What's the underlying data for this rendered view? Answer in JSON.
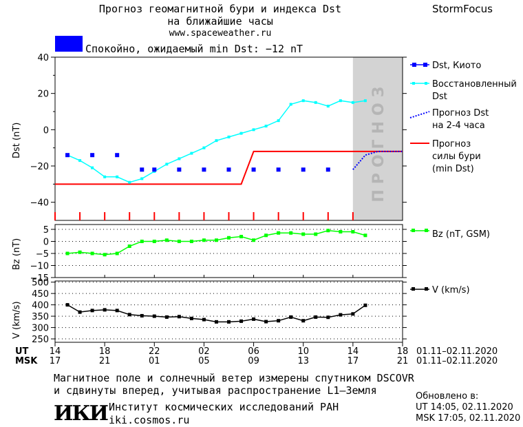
{
  "header": {
    "title_line1": "Прогноз геомагнитной бури и индекса Dst",
    "title_line2": "на ближайшие часы",
    "site": "www.spaceweather.ru",
    "brand": "StormFocus"
  },
  "status": {
    "color": "#0000ff",
    "text": "Спокойно, ожидаемый min Dst: −12 nT"
  },
  "legend": {
    "dst_kyoto": "Dst, Киото",
    "restored_1": "Восстановленный",
    "restored_2": "Dst",
    "forecast_dst_1": "Прогноз Dst",
    "forecast_dst_2": "на 2-4 часа",
    "storm_1": "Прогноз",
    "storm_2": "силы бури",
    "storm_3": "(min Dst)",
    "bz": "Bz (nT, GSM)",
    "v": "V (km/s)"
  },
  "forecast_label": "ПРОГНОЗ",
  "axes": {
    "dst_ylabel": "Dst (nT)",
    "bz_ylabel": "Bz (nT)",
    "v_ylabel": "V (km/s)",
    "dst_ticks": [
      "40",
      "20",
      "0",
      "−20",
      "−40"
    ],
    "bz_ticks": [
      "5",
      "0",
      "−5",
      "−10",
      "−15"
    ],
    "v_ticks": [
      "500",
      "450",
      "400",
      "350",
      "300",
      "250"
    ],
    "ut_label": "UT",
    "msk_label": "MSK",
    "ut_ticks": [
      "14",
      "18",
      "22",
      "02",
      "06",
      "10",
      "14",
      "18"
    ],
    "msk_ticks": [
      "17",
      "21",
      "01",
      "05",
      "09",
      "13",
      "17",
      "21"
    ],
    "date_range_ut": "01.11–02.11.2020",
    "date_range_msk": "01.11–02.11.2020"
  },
  "footer": {
    "note_line1": "Магнитное поле и солнечный ветер измерены спутником DSCOVR",
    "note_line2": "и сдвинуты вперед, учитывая распространение L1–Земля",
    "updated_label": "Обновлено в:",
    "updated_ut": "UT  14:05, 02.11.2020",
    "updated_msk": "MSK 17:05, 02.11.2020",
    "logo_text": "ИКИ",
    "institute": "Институт космических исследований РАН",
    "institute_site": "iki.cosmos.ru"
  },
  "chart_data": [
    {
      "type": "line",
      "panel": "dst",
      "x_unit": "hours since 14 UT 01.11",
      "xlim": [
        0,
        28
      ],
      "ylim": [
        -50,
        40
      ],
      "forecast_shade_x": [
        24,
        28
      ],
      "colors": {
        "kyoto": "#0000ff",
        "restored": "#00ffff",
        "forecast": "#0000ff",
        "storm": "#ff0000",
        "shade": "#d3d3d3"
      },
      "series": [
        {
          "name": "Dst, Киото",
          "x": [
            1,
            3,
            5,
            7,
            8,
            10,
            12,
            14,
            16,
            18,
            20,
            22
          ],
          "values": [
            -14,
            -14,
            -14,
            -22,
            -22,
            -22,
            -22,
            -22,
            -22,
            -22,
            -22,
            -22
          ]
        },
        {
          "name": "Восстановленный Dst",
          "x": [
            1,
            2,
            3,
            4,
            5,
            6,
            7,
            8,
            9,
            10,
            11,
            12,
            13,
            14,
            15,
            16,
            17,
            18,
            19,
            20,
            21,
            22,
            23,
            24,
            25
          ],
          "values": [
            -14,
            -17,
            -21,
            -26,
            -26,
            -29,
            -27,
            -23,
            -19,
            -16,
            -13,
            -10,
            -6,
            -4,
            -2,
            0,
            2,
            5,
            14,
            16,
            15,
            13,
            16,
            15,
            16
          ]
        },
        {
          "name": "Прогноз Dst на 2-4 часа",
          "x": [
            24,
            25,
            26,
            27,
            28
          ],
          "values": [
            -22,
            -14,
            -12,
            -12,
            -12
          ]
        },
        {
          "name": "Прогноз силы бури (min Dst)",
          "x": [
            0,
            15,
            16,
            28
          ],
          "values": [
            -30,
            -30,
            -12,
            -12
          ]
        }
      ]
    },
    {
      "type": "line",
      "panel": "bz",
      "xlim": [
        0,
        28
      ],
      "ylim": [
        -15,
        7
      ],
      "color": "#00ff00",
      "series": [
        {
          "name": "Bz (nT, GSM)",
          "x": [
            1,
            2,
            3,
            4,
            5,
            6,
            7,
            8,
            9,
            10,
            11,
            12,
            13,
            14,
            15,
            16,
            17,
            18,
            19,
            20,
            21,
            22,
            23,
            24,
            25
          ],
          "values": [
            -5,
            -4.5,
            -5,
            -5.5,
            -5,
            -2,
            0,
            0,
            0.5,
            0,
            0,
            0.5,
            0.5,
            1.5,
            2,
            0.5,
            2.5,
            3.5,
            3.5,
            3,
            3,
            4.5,
            4,
            4,
            2.5
          ]
        }
      ]
    },
    {
      "type": "line",
      "panel": "v",
      "xlim": [
        0,
        28
      ],
      "ylim": [
        235,
        505
      ],
      "color": "#000000",
      "series": [
        {
          "name": "V (km/s)",
          "x": [
            1,
            2,
            3,
            4,
            5,
            6,
            7,
            8,
            9,
            10,
            11,
            12,
            13,
            14,
            15,
            16,
            17,
            18,
            19,
            20,
            21,
            22,
            23,
            24,
            25
          ],
          "values": [
            400,
            368,
            375,
            378,
            375,
            357,
            352,
            350,
            346,
            348,
            340,
            335,
            325,
            325,
            328,
            337,
            326,
            330,
            346,
            330,
            346,
            345,
            356,
            360,
            398
          ]
        }
      ]
    }
  ]
}
